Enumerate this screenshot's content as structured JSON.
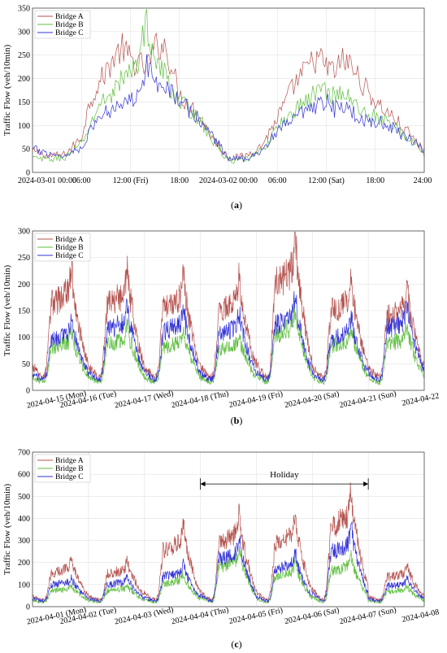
{
  "chart_data": [
    {
      "type": "line",
      "panel_label": "a",
      "ylabel": "Traffic Flow (veh/10min)",
      "xlim": [
        0,
        48
      ],
      "ylim": [
        0,
        350
      ],
      "y_ticks": [
        0,
        50,
        100,
        150,
        200,
        250,
        300,
        350
      ],
      "x_ticks": [
        {
          "x": 0,
          "label": "2024-03-01 00:00"
        },
        {
          "x": 6,
          "label": "06:00"
        },
        {
          "x": 12,
          "label": "12:00 (Fri)"
        },
        {
          "x": 18,
          "label": "18:00"
        },
        {
          "x": 24,
          "label": "2024-03-02 00:00"
        },
        {
          "x": 30,
          "label": "06:00"
        },
        {
          "x": 36,
          "label": "12:00 (Sat)"
        },
        {
          "x": 42,
          "label": "18:00"
        },
        {
          "x": 48,
          "label": "24:00"
        }
      ],
      "grid": true,
      "legend_position": "top-left",
      "series": [
        {
          "name": "Bridge A",
          "color": "#b5534f",
          "x": [
            0,
            2,
            4,
            6,
            7,
            8,
            10,
            11,
            12,
            13,
            14,
            15,
            16,
            17,
            18,
            20,
            22,
            24,
            26,
            28,
            30,
            32,
            34,
            35,
            36,
            37,
            38,
            39,
            40,
            41,
            42,
            44,
            46,
            48
          ],
          "y": [
            45,
            35,
            38,
            75,
            150,
            185,
            245,
            265,
            240,
            230,
            225,
            265,
            275,
            230,
            165,
            130,
            75,
            30,
            35,
            55,
            115,
            185,
            230,
            245,
            225,
            215,
            240,
            230,
            200,
            175,
            150,
            120,
            85,
            45
          ]
        },
        {
          "name": "Bridge B",
          "color": "#5fbf3f",
          "x": [
            0,
            2,
            4,
            6,
            7,
            8,
            10,
            11,
            12,
            13,
            14,
            15,
            16,
            17,
            18,
            20,
            22,
            24,
            26,
            28,
            30,
            32,
            34,
            35,
            36,
            37,
            38,
            39,
            40,
            41,
            42,
            44,
            46,
            48
          ],
          "y": [
            30,
            28,
            32,
            60,
            95,
            140,
            175,
            200,
            210,
            245,
            320,
            235,
            215,
            180,
            150,
            125,
            70,
            25,
            25,
            45,
            95,
            130,
            160,
            175,
            175,
            165,
            170,
            155,
            135,
            125,
            120,
            100,
            75,
            40
          ]
        },
        {
          "name": "Bridge C",
          "color": "#3333d6",
          "x": [
            0,
            2,
            4,
            6,
            7,
            8,
            10,
            11,
            12,
            13,
            14,
            15,
            16,
            17,
            18,
            20,
            22,
            24,
            26,
            28,
            30,
            32,
            34,
            35,
            36,
            37,
            38,
            39,
            40,
            41,
            42,
            44,
            46,
            48
          ],
          "y": [
            50,
            40,
            35,
            55,
            85,
            115,
            140,
            155,
            150,
            180,
            225,
            195,
            195,
            175,
            150,
            120,
            80,
            30,
            30,
            45,
            85,
            115,
            130,
            140,
            150,
            135,
            140,
            130,
            120,
            110,
            110,
            95,
            75,
            50
          ]
        }
      ]
    },
    {
      "type": "line",
      "panel_label": "b",
      "ylabel": "Traffic Flow (veh/10min)",
      "xlim": [
        0,
        7
      ],
      "ylim": [
        0,
        300
      ],
      "y_ticks": [
        0,
        50,
        100,
        150,
        200,
        250,
        300
      ],
      "x_ticks": [
        {
          "x": 0,
          "label": "2024-04-15 (Mon)"
        },
        {
          "x": 1,
          "label": "2024-04-16 (Tue)"
        },
        {
          "x": 2,
          "label": "2024-04-17 (Wed)"
        },
        {
          "x": 3,
          "label": "2024-04-18 (Thu)"
        },
        {
          "x": 4,
          "label": "2024-04-19 (Fri)"
        },
        {
          "x": 5,
          "label": "2024-04-20 (Sat)"
        },
        {
          "x": 6,
          "label": "2024-04-21 (Sun)"
        },
        {
          "x": 7,
          "label": "2024-04-22"
        }
      ],
      "grid": true,
      "legend_position": "top-left",
      "daily_peaks": [
        {
          "name": "Bridge A",
          "color": "#b5534f",
          "base": 25,
          "peaks": [
            240,
            235,
            225,
            220,
            295,
            215,
            200
          ]
        },
        {
          "name": "Bridge B",
          "color": "#5fbf3f",
          "base": 15,
          "peaks": [
            115,
            125,
            115,
            110,
            155,
            120,
            125
          ]
        },
        {
          "name": "Bridge C",
          "color": "#3333d6",
          "base": 20,
          "peaks": [
            140,
            165,
            160,
            150,
            180,
            140,
            170
          ]
        }
      ]
    },
    {
      "type": "line",
      "panel_label": "c",
      "ylabel": "Traffic Flow (veh/10min)",
      "xlim": [
        0,
        7
      ],
      "ylim": [
        0,
        700
      ],
      "y_ticks": [
        0,
        100,
        200,
        300,
        400,
        500,
        600,
        700
      ],
      "x_ticks": [
        {
          "x": 0,
          "label": "2024-04-01 (Mon)"
        },
        {
          "x": 1,
          "label": "2024-04-02 (Tue)"
        },
        {
          "x": 2,
          "label": "2024-04-03 (Wed)"
        },
        {
          "x": 3,
          "label": "2024-04-04 (Thu)"
        },
        {
          "x": 4,
          "label": "2024-04-05 (Fri)"
        },
        {
          "x": 5,
          "label": "2024-04-06 (Sat)"
        },
        {
          "x": 6,
          "label": "2024-04-07 (Sun)"
        },
        {
          "x": 7,
          "label": "2024-04-08"
        }
      ],
      "grid": true,
      "legend_position": "top-left",
      "annotation": {
        "text": "Holiday",
        "x_from": 3,
        "x_to": 6,
        "y": 600
      },
      "daily_peaks": [
        {
          "name": "Bridge A",
          "color": "#b5534f",
          "base": 30,
          "peaks": [
            220,
            215,
            380,
            435,
            420,
            545,
            190
          ]
        },
        {
          "name": "Bridge B",
          "color": "#5fbf3f",
          "base": 20,
          "peaks": [
            100,
            100,
            150,
            270,
            200,
            240,
            95
          ]
        },
        {
          "name": "Bridge C",
          "color": "#3333d6",
          "base": 25,
          "peaks": [
            140,
            140,
            200,
            320,
            250,
            370,
            130
          ]
        }
      ]
    }
  ]
}
